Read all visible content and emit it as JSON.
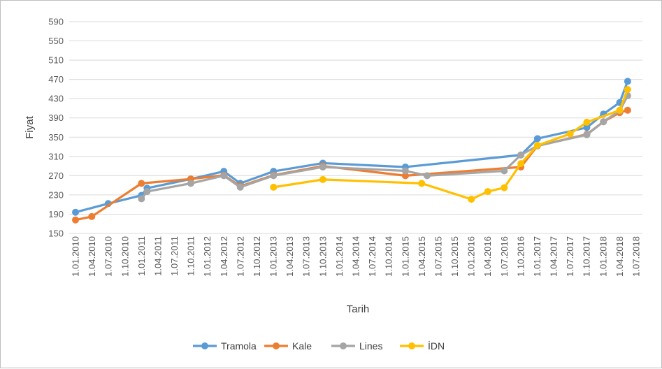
{
  "chart_data": {
    "type": "line",
    "title": "",
    "xlabel": "Tarih",
    "ylabel": "Fiyat",
    "ylim": [
      150,
      590
    ],
    "yticks": [
      150,
      190,
      230,
      270,
      310,
      350,
      390,
      430,
      470,
      510,
      550,
      590
    ],
    "xlim": [
      "2010-01-01",
      "2018-07-01"
    ],
    "xtick_labels": [
      "1.01.2010",
      "1.04.2010",
      "1.07.2010",
      "1.10.2010",
      "1.01.2011",
      "1.04.2011",
      "1.07.2011",
      "1.10.2011",
      "1.01.2012",
      "1.04.2012",
      "1.07.2012",
      "1.10.2012",
      "1.01.2013",
      "1.04.2013",
      "1.07.2013",
      "1.10.2013",
      "1.01.2014",
      "1.04.2014",
      "1.07.2014",
      "1.10.2014",
      "1.01.2015",
      "1.04.2015",
      "1.07.2015",
      "1.10.2015",
      "1.01.2016",
      "1.04.2016",
      "1.07.2016",
      "1.10.2016",
      "1.01.2017",
      "1.04.2017",
      "1.07.2017",
      "1.10.2017",
      "1.01.2018",
      "1.04.2018",
      "1.07.2018"
    ],
    "grid": "horizontal",
    "legend_position": "bottom",
    "series": [
      {
        "name": "Tramola",
        "color": "#5b9bd5",
        "points": [
          [
            "2010-01-01",
            194
          ],
          [
            "2010-07-01",
            212
          ],
          [
            "2011-01-01",
            229
          ],
          [
            "2011-02-01",
            244
          ],
          [
            "2011-10-01",
            263
          ],
          [
            "2012-04-01",
            279
          ],
          [
            "2012-07-01",
            254
          ],
          [
            "2013-01-01",
            279
          ],
          [
            "2013-10-01",
            296
          ],
          [
            "2015-01-01",
            288
          ],
          [
            "2016-10-01",
            313
          ],
          [
            "2017-01-01",
            347
          ],
          [
            "2017-10-01",
            370
          ],
          [
            "2018-01-01",
            398
          ],
          [
            "2018-04-01",
            422
          ],
          [
            "2018-05-15",
            466
          ]
        ]
      },
      {
        "name": "Kale",
        "color": "#ed7d31",
        "points": [
          [
            "2010-01-01",
            178
          ],
          [
            "2010-04-01",
            185
          ],
          [
            "2011-01-01",
            254
          ],
          [
            "2011-10-01",
            263
          ],
          [
            "2012-04-01",
            271
          ],
          [
            "2012-07-01",
            248
          ],
          [
            "2013-01-01",
            271
          ],
          [
            "2013-10-01",
            290
          ],
          [
            "2015-01-01",
            270
          ],
          [
            "2016-10-01",
            288
          ],
          [
            "2017-01-01",
            332
          ],
          [
            "2017-10-01",
            356
          ],
          [
            "2018-01-01",
            382
          ],
          [
            "2018-04-01",
            401
          ],
          [
            "2018-05-15",
            406
          ]
        ]
      },
      {
        "name": "Lines",
        "color": "#a5a5a5",
        "points": [
          [
            "2011-01-01",
            222
          ],
          [
            "2011-02-01",
            237
          ],
          [
            "2011-10-01",
            254
          ],
          [
            "2012-04-01",
            270
          ],
          [
            "2012-07-01",
            246
          ],
          [
            "2013-01-01",
            270
          ],
          [
            "2013-10-01",
            288
          ],
          [
            "2015-01-01",
            280
          ],
          [
            "2015-05-01",
            270
          ],
          [
            "2016-07-01",
            280
          ],
          [
            "2016-10-01",
            313
          ],
          [
            "2017-01-01",
            332
          ],
          [
            "2017-10-01",
            355
          ],
          [
            "2018-01-01",
            382
          ],
          [
            "2018-04-01",
            405
          ],
          [
            "2018-05-15",
            436
          ]
        ]
      },
      {
        "name": "İDN",
        "color": "#ffc000",
        "points": [
          [
            "2013-01-01",
            246
          ],
          [
            "2013-10-01",
            262
          ],
          [
            "2015-04-01",
            254
          ],
          [
            "2016-01-01",
            221
          ],
          [
            "2016-04-01",
            237
          ],
          [
            "2016-07-01",
            245
          ],
          [
            "2016-10-01",
            295
          ],
          [
            "2017-01-01",
            333
          ],
          [
            "2017-07-01",
            357
          ],
          [
            "2017-10-01",
            381
          ],
          [
            "2018-04-01",
            406
          ],
          [
            "2018-05-15",
            449
          ]
        ]
      }
    ]
  }
}
